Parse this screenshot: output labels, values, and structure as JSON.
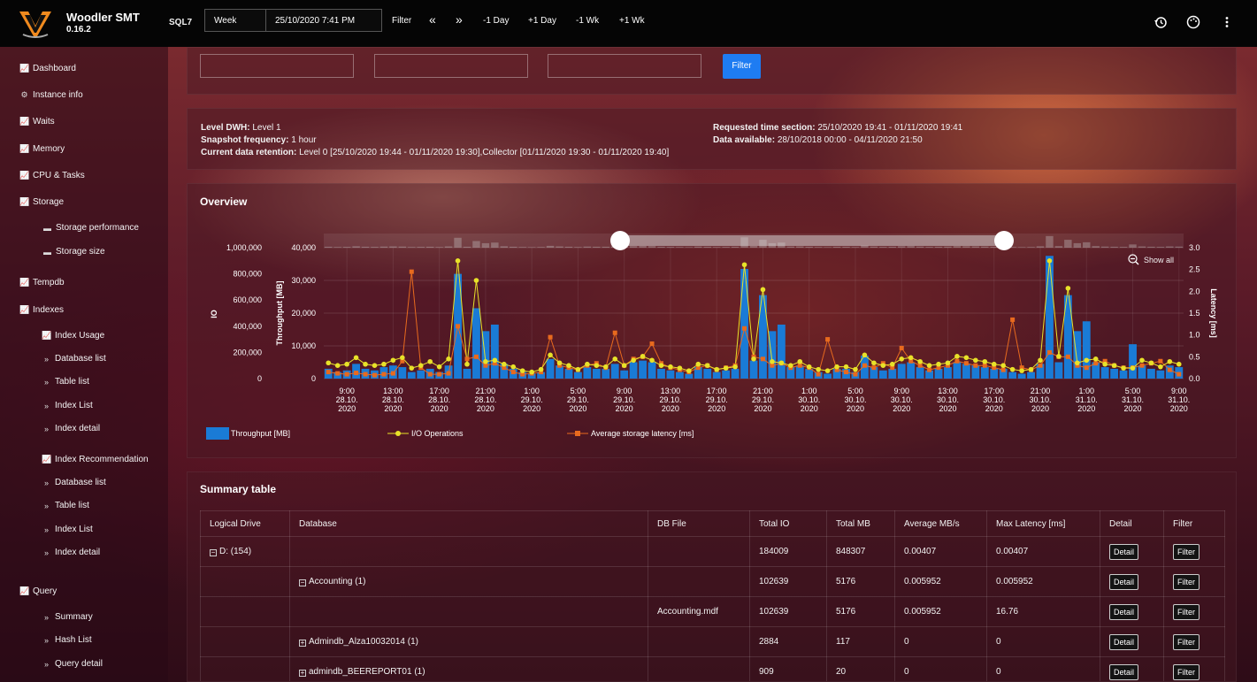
{
  "app": {
    "name": "Woodler SMT",
    "version": "0.16.2",
    "server": "SQL7"
  },
  "toolbar": {
    "range": "Week",
    "datetime": "25/10/2020 7:41 PM",
    "filter": "Filter",
    "prev": "«",
    "next": "»",
    "minus_day": "-1 Day",
    "plus_day": "+1 Day",
    "minus_week": "-1 Wk",
    "plus_week": "+1 Wk"
  },
  "sidebar": {
    "dashboard": "Dashboard",
    "instance_info": "Instance info",
    "waits": "Waits",
    "memory": "Memory",
    "cpu_tasks": "CPU & Tasks",
    "storage": "Storage",
    "storage_performance": "Storage performance",
    "storage_size": "Storage size",
    "tempdb": "Tempdb",
    "indexes": "Indexes",
    "index_usage": "Index Usage",
    "database_list": "Database list",
    "table_list": "Table list",
    "index_list": "Index List",
    "index_detail": "Index detail",
    "index_recommendation": "Index Recommendation",
    "database_list_2": "Database list",
    "table_list_2": "Table list",
    "index_list_2": "Index List",
    "index_detail_2": "Index detail",
    "query": "Query",
    "summary": "Summary",
    "hash_list": "Hash List",
    "query_detail": "Query detail"
  },
  "filter_panel": {
    "button": "Filter"
  },
  "info": {
    "level_label": "Level DWH:",
    "level_value": "Level 1",
    "snapshot_label": "Snapshot frequency:",
    "snapshot_value": "1 hour",
    "retention_label": "Current data retention:",
    "retention_value": "Level 0 [25/10/2020 19:44 - 01/11/2020 19:30],Collector [01/11/2020 19:30 - 01/11/2020 19:40]",
    "requested_label": "Requested time section:",
    "requested_value": "25/10/2020 19:41 - 01/11/2020 19:41",
    "available_label": "Data available:",
    "available_value": "28/10/2018 00:00 - 04/11/2020 21:50"
  },
  "overview": {
    "title": "Overview",
    "show_all": "Show all"
  },
  "chart_data": {
    "type": "bar",
    "title": "",
    "series": [
      {
        "name": "Throughput [MB]",
        "type": "bar",
        "axis": "Throughput [MB]",
        "values": [
          3000,
          2000,
          2500,
          4500,
          3000,
          2500,
          3500,
          4000,
          3500,
          2000,
          2500,
          3000,
          2000,
          4000,
          32000,
          3000,
          21500,
          14500,
          16500,
          4500,
          3000,
          2000,
          1500,
          2000,
          6000,
          4000,
          3000,
          2000,
          3500,
          3000,
          3000,
          4500,
          2500,
          5000,
          5500,
          5000,
          3000,
          2500,
          2000,
          1500,
          3500,
          3000,
          2000,
          2500,
          3000,
          33500,
          5500,
          25500,
          14500,
          16500,
          3500,
          4000,
          3000,
          2000,
          1500,
          3000,
          3000,
          2000,
          7000,
          3500,
          2500,
          3000,
          4500,
          5000,
          3500,
          2500,
          3000,
          3500,
          5000,
          4500,
          4000,
          3500,
          3000,
          3000,
          2000,
          1500,
          2000,
          4500,
          37500,
          5000,
          25500,
          14500,
          17500,
          5000,
          3500,
          3000,
          2500,
          10500,
          4000,
          3000,
          2500,
          4000,
          3500
        ]
      },
      {
        "name": "I/O Operations",
        "type": "line",
        "axis": "IO",
        "values": [
          120000,
          100000,
          110000,
          160000,
          110000,
          100000,
          110000,
          140000,
          160000,
          80000,
          100000,
          130000,
          90000,
          150000,
          900000,
          110000,
          750000,
          130000,
          140000,
          110000,
          90000,
          60000,
          50000,
          70000,
          180000,
          120000,
          100000,
          70000,
          110000,
          100000,
          90000,
          150000,
          100000,
          140000,
          170000,
          140000,
          100000,
          90000,
          80000,
          60000,
          110000,
          100000,
          70000,
          80000,
          90000,
          870000,
          150000,
          680000,
          130000,
          120000,
          100000,
          130000,
          90000,
          70000,
          60000,
          90000,
          90000,
          70000,
          180000,
          120000,
          100000,
          110000,
          150000,
          160000,
          130000,
          100000,
          110000,
          120000,
          170000,
          160000,
          140000,
          130000,
          110000,
          100000,
          70000,
          60000,
          70000,
          140000,
          900000,
          170000,
          690000,
          120000,
          140000,
          150000,
          110000,
          100000,
          80000,
          80000,
          140000,
          120000,
          90000,
          130000,
          110000
        ]
      },
      {
        "name": "Average storage latency [ms]",
        "type": "line",
        "axis": "Latency [ms]",
        "values": [
          0.15,
          0.12,
          0.1,
          0.13,
          0.1,
          0.08,
          0.1,
          0.12,
          0.4,
          2.45,
          0.25,
          0.1,
          0.1,
          0.12,
          1.2,
          0.45,
          0.5,
          0.3,
          0.35,
          0.25,
          0.15,
          0.1,
          0.12,
          0.15,
          0.95,
          0.3,
          0.25,
          0.2,
          0.3,
          0.35,
          0.25,
          1.05,
          0.3,
          0.45,
          0.5,
          0.8,
          0.35,
          0.25,
          0.2,
          0.15,
          0.25,
          0.3,
          0.2,
          0.25,
          0.3,
          1.15,
          0.5,
          0.45,
          0.3,
          0.35,
          0.25,
          0.3,
          0.25,
          0.1,
          0.9,
          0.2,
          0.15,
          0.1,
          0.3,
          0.25,
          0.35,
          0.25,
          0.7,
          0.4,
          0.3,
          0.2,
          0.25,
          0.3,
          0.4,
          0.35,
          0.3,
          0.3,
          0.25,
          0.2,
          1.35,
          0.25,
          0.2,
          0.3,
          0.6,
          0.5,
          0.5,
          0.3,
          0.25,
          0.35,
          0.4,
          0.3,
          0.25,
          0.25,
          0.3,
          0.35,
          0.4,
          0.2,
          0.1
        ]
      }
    ],
    "x_ticks": [
      "9:00\n28.10.\n2020",
      "13:00\n28.10.\n2020",
      "17:00\n28.10.\n2020",
      "21:00\n28.10.\n2020",
      "1:00\n29.10.\n2020",
      "5:00\n29.10.\n2020",
      "9:00\n29.10.\n2020",
      "13:00\n29.10.\n2020",
      "17:00\n29.10.\n2020",
      "21:00\n29.10.\n2020",
      "1:00\n30.10.\n2020",
      "5:00\n30.10.\n2020",
      "9:00\n30.10.\n2020",
      "13:00\n30.10.\n2020",
      "17:00\n30.10.\n2020",
      "21:00\n30.10.\n2020",
      "1:00\n31.10.\n2020",
      "5:00\n31.10.\n2020",
      "9:00\n31.10.\n2020"
    ],
    "y_io": {
      "label": "IO",
      "ticks": [
        "1,000,000",
        "800,000",
        "600,000",
        "400,000",
        "200,000",
        "0"
      ],
      "range": [
        0,
        1000000
      ]
    },
    "y_throughput": {
      "label": "Throughput [MB]",
      "ticks": [
        "40,000",
        "30,000",
        "20,000",
        "10,000",
        "0"
      ],
      "range": [
        0,
        40000
      ]
    },
    "y_latency": {
      "label": "Latency [ms]",
      "ticks": [
        "3.0",
        "2.5",
        "2.0",
        "1.5",
        "1.0",
        "0.5",
        "0.0"
      ],
      "range": [
        0,
        3
      ]
    },
    "legend": [
      "Throughput [MB]",
      "I/O Operations",
      "Average storage latency [ms]"
    ],
    "colors": {
      "bar": "#1a7bd6",
      "io": "#e8e229",
      "latency": "#e86a1e"
    }
  },
  "summary": {
    "title": "Summary table",
    "headers": [
      "Logical Drive",
      "Database",
      "DB File",
      "Total IO",
      "Total MB",
      "Average MB/s",
      "Max Latency [ms]",
      "Detail",
      "Filter"
    ],
    "rows": [
      {
        "drive": "D: (154)",
        "database": "",
        "file": "",
        "io": "184009",
        "mb": "848307",
        "avg": "0.00407",
        "lat": "0.00407",
        "detail": "Detail",
        "filter": "Filter",
        "toggle_drive": "−",
        "toggle_db": ""
      },
      {
        "drive": "",
        "database": "Accounting (1)",
        "file": "",
        "io": "102639",
        "mb": "5176",
        "avg": "0.005952",
        "lat": "0.005952",
        "detail": "Detail",
        "filter": "Filter",
        "toggle_drive": "",
        "toggle_db": "−"
      },
      {
        "drive": "",
        "database": "",
        "file": "Accounting.mdf",
        "io": "102639",
        "mb": "5176",
        "avg": "0.005952",
        "lat": "16.76",
        "detail": "Detail",
        "filter": "Filter",
        "toggle_drive": "",
        "toggle_db": ""
      },
      {
        "drive": "",
        "database": "Admindb_Alza10032014 (1)",
        "file": "",
        "io": "2884",
        "mb": "117",
        "avg": "0",
        "lat": "0",
        "detail": "Detail",
        "filter": "Filter",
        "toggle_drive": "",
        "toggle_db": "+"
      },
      {
        "drive": "",
        "database": "admindb_BEEREPORT01 (1)",
        "file": "",
        "io": "909",
        "mb": "20",
        "avg": "0",
        "lat": "0",
        "detail": "Detail",
        "filter": "Filter",
        "toggle_drive": "",
        "toggle_db": "+"
      }
    ]
  }
}
